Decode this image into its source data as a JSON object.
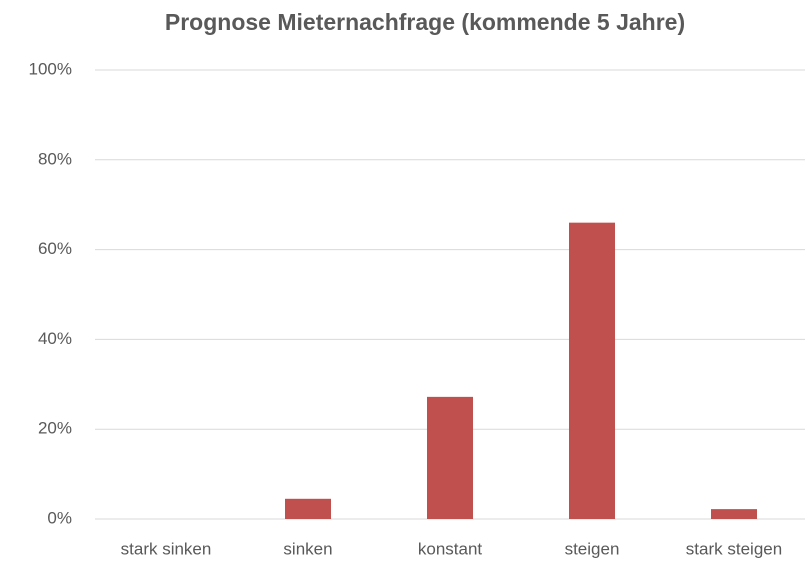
{
  "chart_data": {
    "type": "bar",
    "title": "Prognose Mieternachfrage (kommende 5 Jahre)",
    "categories": [
      "stark sinken",
      "sinken",
      "konstant",
      "steigen",
      "stark steigen"
    ],
    "values": [
      0,
      4.5,
      27.2,
      66,
      2.2
    ],
    "color": "#c0504d",
    "ylim": [
      0,
      100
    ],
    "yticks": [
      {
        "value": 0,
        "label": "0%"
      },
      {
        "value": 20,
        "label": "20%"
      },
      {
        "value": 40,
        "label": "40%"
      },
      {
        "value": 60,
        "label": "60%"
      },
      {
        "value": 80,
        "label": "80%"
      },
      {
        "value": 100,
        "label": "100%"
      }
    ],
    "grid": true
  }
}
